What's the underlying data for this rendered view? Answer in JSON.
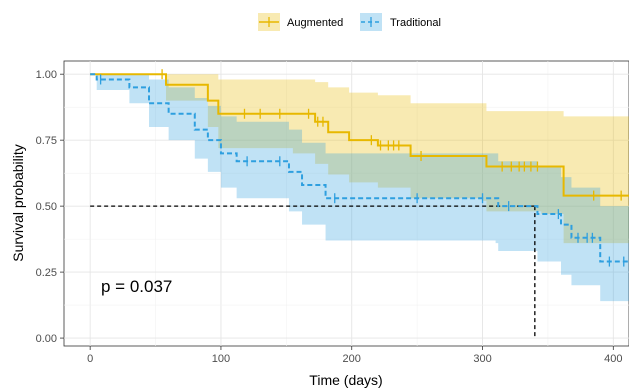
{
  "chart_data": {
    "type": "line",
    "subtype": "kaplan-meier",
    "xlabel": "Time (days)",
    "ylabel": "Survival probability",
    "xlim": [
      -20,
      412
    ],
    "ylim": [
      -0.03,
      1.05
    ],
    "x_ticks": [
      0,
      100,
      200,
      300,
      400
    ],
    "y_ticks": [
      0.0,
      0.25,
      0.5,
      0.75,
      1.0
    ],
    "x_tick_labels": [
      "0",
      "100",
      "200",
      "300",
      "400"
    ],
    "y_tick_labels": [
      "0.00",
      "0.25",
      "0.50",
      "0.75",
      "1.00"
    ],
    "grid": true,
    "legend_position": "top",
    "annotation": "p = 0.037",
    "median_line": {
      "y": 0.5,
      "x_end": 340
    },
    "series": [
      {
        "name": "Augmented",
        "color": "#E7B800",
        "linestyle": "solid",
        "steps": [
          [
            0,
            1.0
          ],
          [
            52,
            1.0
          ],
          [
            58,
            0.96
          ],
          [
            90,
            0.9
          ],
          [
            98,
            0.85
          ],
          [
            155,
            0.85
          ],
          [
            172,
            0.82
          ],
          [
            182,
            0.78
          ],
          [
            198,
            0.75
          ],
          [
            220,
            0.73
          ],
          [
            240,
            0.73
          ],
          [
            245,
            0.69
          ],
          [
            300,
            0.69
          ],
          [
            303,
            0.65
          ],
          [
            345,
            0.65
          ],
          [
            362,
            0.54
          ],
          [
            412,
            0.54
          ]
        ],
        "ci_upper": [
          [
            0,
            1.0
          ],
          [
            52,
            1.0
          ],
          [
            58,
            1.0
          ],
          [
            90,
            1.0
          ],
          [
            98,
            0.98
          ],
          [
            155,
            0.98
          ],
          [
            172,
            0.97
          ],
          [
            182,
            0.95
          ],
          [
            198,
            0.93
          ],
          [
            220,
            0.92
          ],
          [
            245,
            0.89
          ],
          [
            300,
            0.89
          ],
          [
            303,
            0.86
          ],
          [
            345,
            0.86
          ],
          [
            362,
            0.84
          ],
          [
            412,
            0.84
          ]
        ],
        "ci_lower": [
          [
            0,
            1.0
          ],
          [
            52,
            1.0
          ],
          [
            58,
            0.9
          ],
          [
            90,
            0.8
          ],
          [
            98,
            0.72
          ],
          [
            155,
            0.7
          ],
          [
            172,
            0.66
          ],
          [
            182,
            0.62
          ],
          [
            198,
            0.59
          ],
          [
            220,
            0.57
          ],
          [
            245,
            0.53
          ],
          [
            300,
            0.52
          ],
          [
            303,
            0.48
          ],
          [
            345,
            0.47
          ],
          [
            362,
            0.36
          ],
          [
            412,
            0.36
          ]
        ],
        "censor_x": [
          55,
          118,
          130,
          145,
          167,
          174,
          178,
          215,
          222,
          228,
          232,
          236,
          253,
          315,
          322,
          328,
          332,
          337,
          342,
          385,
          406
        ]
      },
      {
        "name": "Traditional",
        "color": "#2E9FDF",
        "linestyle": "dashed",
        "steps": [
          [
            0,
            1.0
          ],
          [
            5,
            0.98
          ],
          [
            30,
            0.95
          ],
          [
            45,
            0.89
          ],
          [
            60,
            0.85
          ],
          [
            80,
            0.79
          ],
          [
            90,
            0.75
          ],
          [
            100,
            0.7
          ],
          [
            112,
            0.67
          ],
          [
            152,
            0.63
          ],
          [
            162,
            0.58
          ],
          [
            180,
            0.53
          ],
          [
            310,
            0.53
          ],
          [
            312,
            0.5
          ],
          [
            342,
            0.47
          ],
          [
            360,
            0.43
          ],
          [
            368,
            0.38
          ],
          [
            390,
            0.29
          ],
          [
            412,
            0.29
          ]
        ],
        "ci_upper": [
          [
            0,
            1.0
          ],
          [
            5,
            1.0
          ],
          [
            30,
            1.0
          ],
          [
            45,
            0.98
          ],
          [
            60,
            0.95
          ],
          [
            80,
            0.91
          ],
          [
            90,
            0.88
          ],
          [
            100,
            0.84
          ],
          [
            112,
            0.82
          ],
          [
            152,
            0.79
          ],
          [
            162,
            0.74
          ],
          [
            180,
            0.7
          ],
          [
            310,
            0.7
          ],
          [
            312,
            0.67
          ],
          [
            342,
            0.65
          ],
          [
            360,
            0.61
          ],
          [
            368,
            0.57
          ],
          [
            390,
            0.5
          ],
          [
            412,
            0.5
          ]
        ],
        "ci_lower": [
          [
            0,
            1.0
          ],
          [
            5,
            0.94
          ],
          [
            30,
            0.89
          ],
          [
            45,
            0.8
          ],
          [
            60,
            0.75
          ],
          [
            80,
            0.68
          ],
          [
            90,
            0.63
          ],
          [
            100,
            0.57
          ],
          [
            112,
            0.53
          ],
          [
            152,
            0.48
          ],
          [
            162,
            0.43
          ],
          [
            180,
            0.37
          ],
          [
            310,
            0.36
          ],
          [
            312,
            0.33
          ],
          [
            342,
            0.29
          ],
          [
            360,
            0.24
          ],
          [
            368,
            0.2
          ],
          [
            390,
            0.14
          ],
          [
            412,
            0.14
          ]
        ],
        "censor_x": [
          8,
          120,
          145,
          187,
          250,
          300,
          320,
          358,
          373,
          380,
          384,
          397,
          408
        ]
      }
    ]
  }
}
